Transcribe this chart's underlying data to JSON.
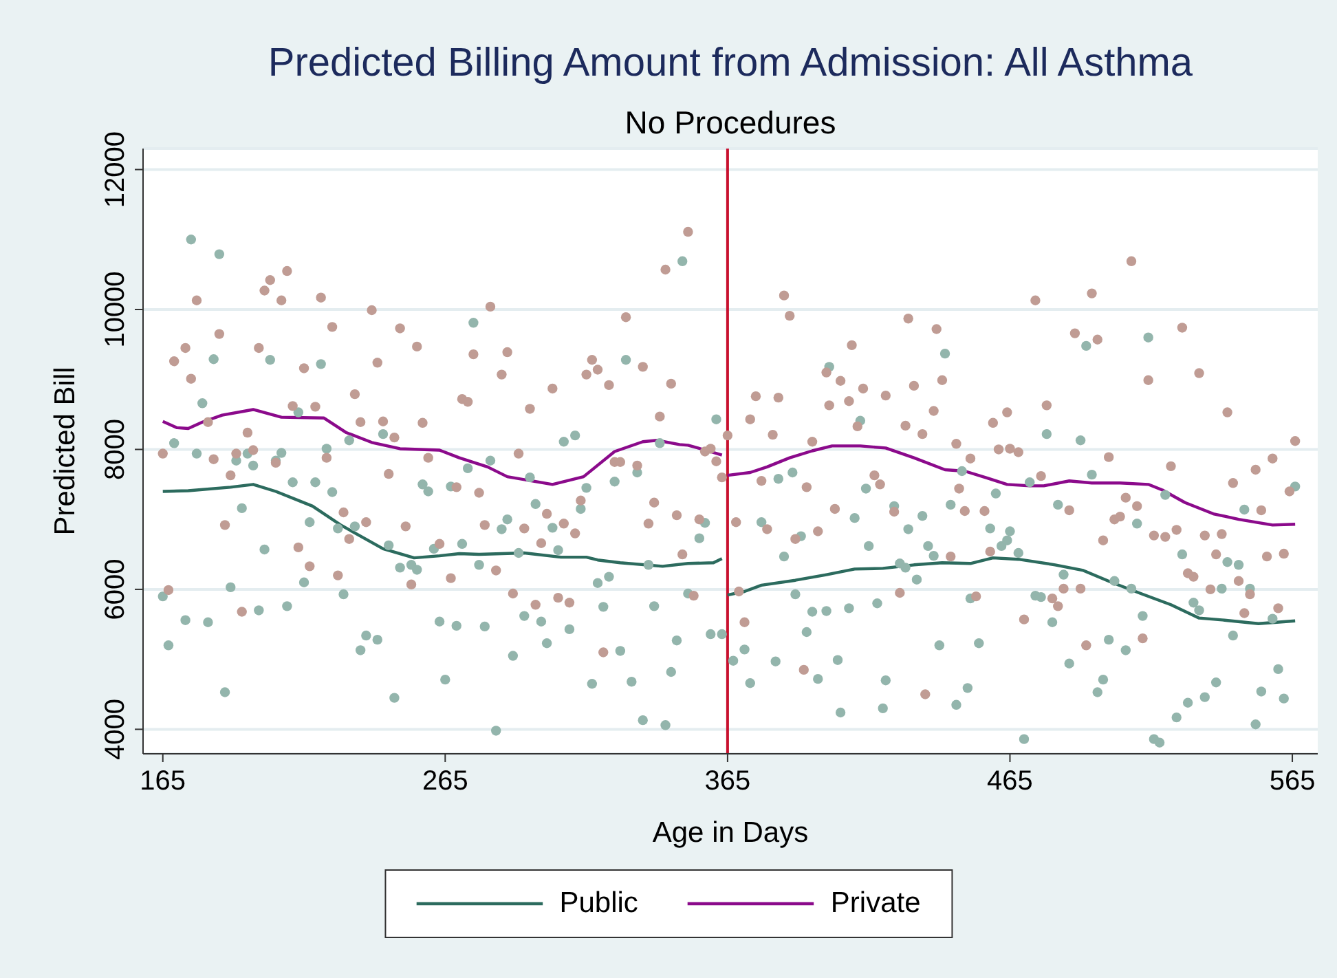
{
  "chart_data": {
    "type": "scatter",
    "title": "Predicted Billing Amount from Admission: All Asthma",
    "subtitle": "No Procedures",
    "xlabel": "Age in Days",
    "ylabel": "Predicted Bill",
    "xlim": [
      158,
      574
    ],
    "xticks": [
      165,
      265,
      365,
      465,
      565
    ],
    "ylim": [
      3650,
      12300
    ],
    "yticks": [
      4000,
      6000,
      8000,
      10000,
      12000
    ],
    "grid": "y",
    "legend": "bottom",
    "ref_lines": [
      {
        "axis": "x",
        "value": 365,
        "color": "#c8102e"
      }
    ],
    "series": [
      {
        "marker": "circle",
        "color": "#93b5ac",
        "x": [
          175,
          185,
          183,
          203,
          221,
          179,
          213,
          169,
          177,
          191,
          195,
          197,
          207,
          205,
          223,
          231,
          243,
          211,
          219,
          225,
          193,
          217,
          227,
          233,
          245,
          201,
          249,
          253,
          255,
          261,
          189,
          215,
          229,
          165,
          173,
          181,
          199,
          209,
          167,
          237,
          241,
          235,
          187,
          247,
          257,
          259,
          275,
          361,
          349,
          307,
          311,
          267,
          273,
          281,
          295,
          315,
          325,
          333,
          341,
          297,
          313,
          287,
          285,
          303,
          305,
          291,
          277,
          271,
          329,
          357,
          355,
          337,
          319,
          323,
          351,
          263,
          269,
          279,
          293,
          299,
          321,
          339,
          309,
          301,
          289,
          327,
          347,
          359,
          363,
          265,
          317,
          331,
          345,
          335,
          343,
          283,
          401,
          442,
          412,
          388,
          383,
          414,
          448,
          460,
          377,
          424,
          444,
          410,
          434,
          429,
          458,
          391,
          415,
          436,
          438,
          385,
          465,
          462,
          464,
          426,
          428,
          432,
          389,
          451,
          395,
          400,
          408,
          418,
          371,
          393,
          440,
          454,
          367,
          382,
          404,
          373,
          397,
          421,
          450,
          405,
          420,
          446,
          478,
          490,
          492,
          514,
          494,
          472,
          482,
          468,
          520,
          510,
          548,
          566,
          484,
          502,
          508,
          526,
          542,
          546,
          550,
          540,
          474,
          476,
          480,
          512,
          530,
          532,
          558,
          500,
          506,
          544,
          486,
          498,
          496,
          560,
          554,
          562,
          538,
          534,
          528,
          524,
          552,
          470,
          516,
          518
        ],
        "values": [
          11000,
          10790,
          9290,
          9280,
          9220,
          8660,
          8530,
          8090,
          7940,
          7840,
          7940,
          7770,
          7950,
          7840,
          8010,
          8130,
          8220,
          7530,
          7530,
          7390,
          7160,
          6960,
          6870,
          6900,
          6630,
          6570,
          6310,
          6350,
          6280,
          6580,
          6030,
          6100,
          5930,
          5900,
          5560,
          5530,
          5700,
          5760,
          5200,
          5340,
          5280,
          5130,
          4530,
          4450,
          7500,
          7400,
          9810,
          8430,
          10690,
          8110,
          8200,
          7470,
          7730,
          7840,
          7600,
          7450,
          7540,
          7670,
          8090,
          7220,
          7150,
          7000,
          6860,
          6880,
          6560,
          6520,
          6350,
          6650,
          9280,
          6950,
          6730,
          6350,
          6090,
          6180,
          5940,
          5540,
          5480,
          5470,
          5620,
          5540,
          5750,
          5760,
          5430,
          5230,
          5050,
          5120,
          5270,
          5360,
          5360,
          4710,
          4650,
          4680,
          4820,
          4130,
          4060,
          3980,
          9180,
          9370,
          8410,
          7670,
          7580,
          7440,
          7690,
          7370,
          6960,
          7190,
          7210,
          7020,
          7050,
          6860,
          6870,
          6760,
          6620,
          6620,
          6480,
          6470,
          6830,
          6620,
          6700,
          6370,
          6310,
          6140,
          5930,
          5870,
          5680,
          5690,
          5730,
          5800,
          5140,
          5390,
          5200,
          5230,
          4980,
          4970,
          4990,
          4660,
          4720,
          4700,
          4590,
          4240,
          4300,
          4350,
          8220,
          8130,
          9480,
          9600,
          7640,
          7530,
          7210,
          6520,
          7350,
          6940,
          7140,
          7470,
          6210,
          6120,
          6010,
          6500,
          6390,
          6350,
          6010,
          6010,
          5910,
          5890,
          5530,
          5620,
          5810,
          5700,
          5580,
          5280,
          5130,
          5340,
          4940,
          4710,
          4530,
          4860,
          4540,
          4440,
          4670,
          4460,
          4380,
          4170,
          4070,
          3860,
          3860,
          3810
        ]
      },
      {
        "marker": "circle",
        "color": "#c09c94",
        "x": [
          177,
          201,
          203,
          209,
          207,
          221,
          239,
          225,
          185,
          249,
          173,
          169,
          199,
          255,
          175,
          215,
          241,
          233,
          211,
          219,
          181,
          235,
          243,
          257,
          195,
          247,
          165,
          183,
          191,
          197,
          205,
          223,
          259,
          189,
          245,
          187,
          229,
          237,
          251,
          231,
          213,
          217,
          227,
          253,
          167,
          193,
          351,
          343,
          281,
          329,
          275,
          287,
          285,
          317,
          319,
          315,
          335,
          271,
          273,
          303,
          323,
          345,
          295,
          341,
          291,
          325,
          327,
          333,
          357,
          359,
          361,
          363,
          269,
          277,
          313,
          339,
          301,
          279,
          293,
          307,
          311,
          337,
          347,
          355,
          299,
          263,
          283,
          267,
          349,
          289,
          297,
          305,
          309,
          353,
          321,
          365,
          385,
          387,
          429,
          439,
          409,
          400,
          405,
          441,
          431,
          413,
          375,
          383,
          421,
          401,
          408,
          438,
          464,
          373,
          459,
          411,
          428,
          434,
          381,
          395,
          446,
          461,
          465,
          451,
          377,
          393,
          417,
          419,
          447,
          403,
          424,
          449,
          456,
          368,
          379,
          397,
          389,
          444,
          458,
          369,
          426,
          453,
          371,
          392,
          435,
          474,
          494,
          508,
          488,
          496,
          526,
          514,
          532,
          478,
          542,
          468,
          500,
          522,
          476,
          544,
          552,
          558,
          566,
          564,
          486,
          506,
          510,
          502,
          504,
          554,
          498,
          516,
          520,
          524,
          534,
          540,
          538,
          556,
          562,
          528,
          530,
          536,
          546,
          550,
          548,
          560,
          480,
          482,
          484,
          490,
          470,
          492,
          512
        ],
        "values": [
          10130,
          10270,
          10420,
          10550,
          10130,
          10170,
          9990,
          9750,
          9650,
          9730,
          9450,
          9260,
          9450,
          9470,
          9010,
          9160,
          9240,
          8790,
          8620,
          8610,
          8390,
          8390,
          8400,
          8380,
          8240,
          8170,
          7940,
          7860,
          7940,
          7990,
          7810,
          7880,
          7880,
          7630,
          7650,
          6920,
          7100,
          6960,
          6900,
          6720,
          6600,
          6330,
          6200,
          6070,
          5990,
          5680,
          11110,
          10570,
          10040,
          9890,
          9360,
          9390,
          9070,
          9280,
          9140,
          9070,
          9180,
          8720,
          8680,
          8870,
          8920,
          8940,
          8580,
          8470,
          7940,
          7820,
          7820,
          7770,
          7970,
          8010,
          7830,
          7600,
          7460,
          7380,
          7270,
          7240,
          7080,
          6920,
          6870,
          6940,
          6800,
          6940,
          7060,
          7000,
          6660,
          6650,
          6270,
          6160,
          6500,
          5940,
          5780,
          5880,
          5810,
          5910,
          5100,
          8200,
          10200,
          9910,
          9870,
          9720,
          9490,
          9100,
          8980,
          8990,
          8910,
          8870,
          8760,
          8740,
          8770,
          8630,
          8690,
          8550,
          8530,
          8430,
          8380,
          8330,
          8340,
          8220,
          8210,
          8110,
          8080,
          8000,
          8010,
          7870,
          7550,
          7460,
          7630,
          7500,
          7440,
          7150,
          7110,
          7120,
          7120,
          6960,
          6860,
          6830,
          6720,
          6470,
          6540,
          5970,
          5950,
          5900,
          5530,
          4850,
          4500,
          10130,
          10230,
          10690,
          9660,
          9570,
          9740,
          8990,
          9090,
          8630,
          8530,
          7960,
          7890,
          7760,
          7620,
          7520,
          7710,
          7870,
          8120,
          7400,
          7130,
          7310,
          7190,
          7000,
          7040,
          7130,
          6700,
          6770,
          6750,
          6850,
          6770,
          6790,
          6500,
          6470,
          6510,
          6230,
          6180,
          6000,
          6120,
          5930,
          5660,
          5730,
          5870,
          5760,
          6010,
          6010,
          5570,
          5200,
          5300
        ]
      },
      {
        "type": "line",
        "marker": "none",
        "name": "Public",
        "color": "#2c6b5e",
        "x": [
          165,
          174,
          189,
          197,
          205,
          218,
          228,
          243,
          254,
          263,
          270,
          277,
          293,
          306,
          315,
          319,
          327,
          342,
          351,
          360,
          363,
          364.5,
          365,
          371,
          377,
          389,
          400,
          410,
          420,
          431,
          441,
          451,
          459,
          468,
          481,
          491,
          501,
          512,
          522,
          532,
          541,
          553,
          566
        ],
        "values": [
          7400,
          7410,
          7460,
          7500,
          7400,
          7190,
          6920,
          6580,
          6450,
          6480,
          6510,
          6500,
          6520,
          6460,
          6460,
          6420,
          6380,
          6330,
          6370,
          6380,
          6440,
          null,
          5920,
          5970,
          6060,
          6130,
          6210,
          6290,
          6300,
          6350,
          6380,
          6370,
          6450,
          6430,
          6350,
          6270,
          6100,
          5930,
          5780,
          5590,
          5560,
          5510,
          5550
        ]
      },
      {
        "type": "line",
        "marker": "none",
        "name": "Private",
        "color": "#8b0a8b",
        "x": [
          165,
          170,
          174,
          179,
          186,
          197,
          207,
          222,
          230,
          239,
          249,
          263,
          270,
          280,
          287,
          303,
          314,
          325,
          335,
          340,
          348,
          351,
          358,
          363,
          364.5,
          365,
          373,
          379,
          387,
          395,
          402,
          412,
          421,
          431,
          442,
          449,
          457,
          464,
          472,
          477,
          486,
          494,
          504,
          514,
          519,
          527,
          537,
          546,
          558,
          566
        ],
        "values": [
          8400,
          8310,
          8300,
          8390,
          8490,
          8570,
          8460,
          8450,
          8240,
          8100,
          8010,
          7990,
          7880,
          7750,
          7610,
          7500,
          7610,
          7970,
          8110,
          8130,
          8070,
          8060,
          7980,
          7920,
          null,
          7630,
          7670,
          7750,
          7880,
          7980,
          8050,
          8050,
          8020,
          7880,
          7710,
          7690,
          7590,
          7500,
          7480,
          7480,
          7550,
          7520,
          7520,
          7500,
          7420,
          7240,
          7080,
          7000,
          6920,
          6930
        ]
      }
    ]
  }
}
